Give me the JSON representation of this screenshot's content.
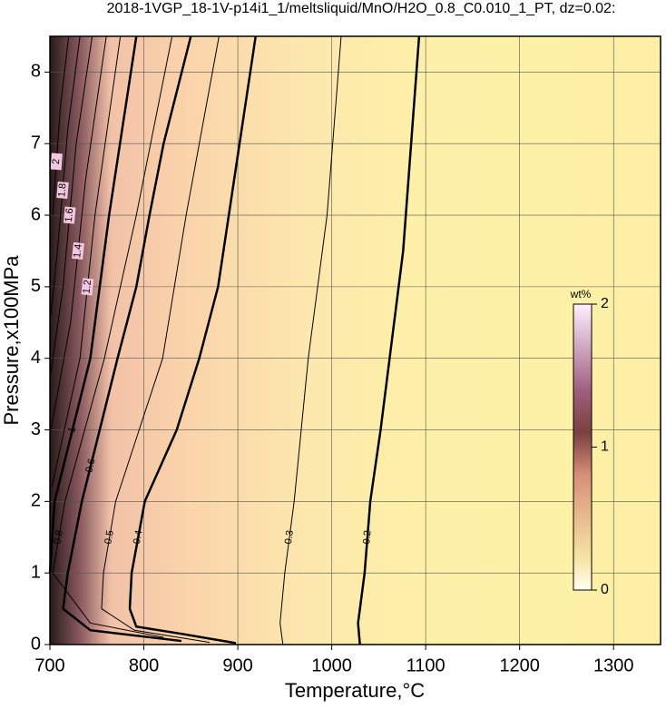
{
  "chart_data": {
    "type": "contour",
    "title": "2018-1VGP_18-1V-p14i1_1/meltsliquid/MnO/H2O_0.8_C0.010_1_PT, dz=0.02:",
    "x_label": "Temperature,°C",
    "y_label": "Pressure,x100MPa",
    "xlim": [
      700,
      1350
    ],
    "ylim": [
      0,
      8.5
    ],
    "xticks": [
      700,
      800,
      900,
      1000,
      1100,
      1200,
      1300
    ],
    "yticks": [
      0,
      1,
      2,
      3,
      4,
      5,
      6,
      7,
      8
    ],
    "grid": true,
    "contours": [
      {
        "level": 0.2,
        "x": [
          1093,
          1076,
          1052,
          1041,
          1035,
          1028,
          1030
        ],
        "y": [
          8.5,
          5.5,
          3,
          2,
          1,
          0.3,
          0
        ]
      },
      {
        "level": 0.3,
        "x": [
          1010,
          995,
          975,
          960,
          950,
          945,
          948
        ],
        "y": [
          8.5,
          6,
          4,
          2,
          1,
          0.3,
          0
        ]
      },
      {
        "level": 0.4,
        "x": [
          919,
          879,
          859,
          835,
          801,
          787,
          785,
          792,
          840,
          898
        ],
        "y": [
          8.5,
          5,
          4,
          3,
          2,
          1,
          0.5,
          0.25,
          0.15,
          0.02
        ]
      },
      {
        "level": 0.5,
        "x": [
          880,
          845,
          820,
          795,
          770,
          757,
          755,
          790,
          870
        ],
        "y": [
          8.5,
          6,
          4,
          3,
          2,
          1,
          0.5,
          0.2,
          0.03
        ]
      },
      {
        "level": 0.6,
        "x": [
          850,
          821,
          806,
          792,
          772,
          753,
          734,
          719,
          714,
          743,
          840
        ],
        "y": [
          8.5,
          7,
          6,
          5,
          4,
          3,
          2,
          1,
          0.5,
          0.2,
          0.05
        ]
      },
      {
        "level": 0.8,
        "x": [
          830,
          792,
          758,
          716,
          703,
          743,
          821
        ],
        "y": [
          8.5,
          6,
          4,
          2,
          1,
          0.3,
          0.1
        ]
      },
      {
        "level": 1,
        "x": [
          792,
          763,
          743,
          705,
          700
        ],
        "y": [
          8.5,
          6,
          4,
          2,
          1
        ]
      },
      {
        "level": 1.2,
        "x": [
          775,
          748,
          732,
          702
        ],
        "y": [
          8.5,
          6,
          4,
          2.2
        ]
      },
      {
        "level": 1.4,
        "x": [
          760,
          738,
          722,
          701
        ],
        "y": [
          8.5,
          6.5,
          4.5,
          3
        ]
      },
      {
        "level": 1.6,
        "x": [
          745,
          728,
          714,
          701
        ],
        "y": [
          8.5,
          7,
          5,
          3.8
        ]
      },
      {
        "level": 1.8,
        "x": [
          732,
          719,
          708,
          701
        ],
        "y": [
          8.5,
          7.2,
          5.5,
          4.6
        ]
      },
      {
        "level": 2,
        "x": [
          720,
          711,
          703
        ],
        "y": [
          8.5,
          7.5,
          6
        ]
      }
    ],
    "colorbar": {
      "label": "wt%",
      "lim": [
        0,
        2
      ],
      "ticks": [
        0,
        1,
        2
      ]
    }
  }
}
